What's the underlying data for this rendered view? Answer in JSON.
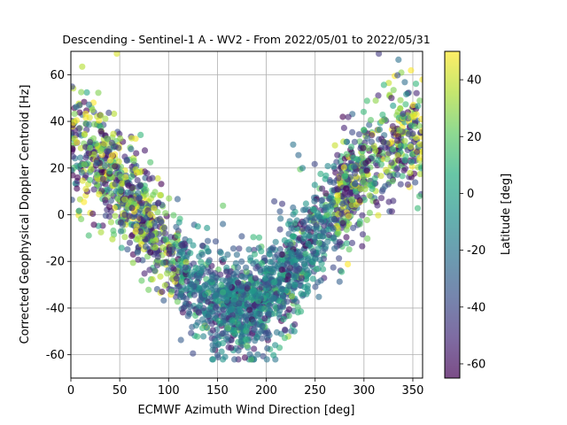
{
  "chart_data": {
    "type": "scatter",
    "title": "Descending - Sentinel-1 A - WV2 - From 2022/05/01 to 2022/05/31",
    "xlabel": "ECMWF Azimuth Wind Direction [deg]",
    "ylabel": "Corrected Geophysical Doppler Centroid [Hz]",
    "xlim": [
      0,
      360
    ],
    "ylim": [
      -70,
      70
    ],
    "x_ticks": [
      "0",
      "50",
      "100",
      "150",
      "200",
      "250",
      "300",
      "350"
    ],
    "y_ticks": [
      "-60",
      "-40",
      "-20",
      "0",
      "20",
      "40",
      "60"
    ],
    "grid": true,
    "colorbar": {
      "label": "Latitude [deg]",
      "range": [
        -65,
        50
      ],
      "ticks": [
        "-60",
        "-40",
        "-20",
        "0",
        "20",
        "40"
      ],
      "colormap": "viridis",
      "alpha": 0.6
    },
    "series": [
      {
        "trend": "doppler ≈ 35·cos(direction) − 5, minimum near 190 deg",
        "points_approx": [
          {
            "x": 5,
            "y": 28
          },
          {
            "x": 10,
            "y": 65
          },
          {
            "x": 20,
            "y": 35
          },
          {
            "x": 20,
            "y": -27
          },
          {
            "x": 40,
            "y": 64
          },
          {
            "x": 55,
            "y": 61
          },
          {
            "x": 80,
            "y": 57
          },
          {
            "x": 100,
            "y": -5
          },
          {
            "x": 150,
            "y": -20
          },
          {
            "x": 165,
            "y": 39
          },
          {
            "x": 195,
            "y": -57
          },
          {
            "x": 200,
            "y": -45
          },
          {
            "x": 215,
            "y": -50
          },
          {
            "x": 245,
            "y": -49
          },
          {
            "x": 250,
            "y": 52
          },
          {
            "x": 300,
            "y": 68
          },
          {
            "x": 320,
            "y": 20
          },
          {
            "x": 350,
            "y": 66
          }
        ]
      }
    ]
  }
}
